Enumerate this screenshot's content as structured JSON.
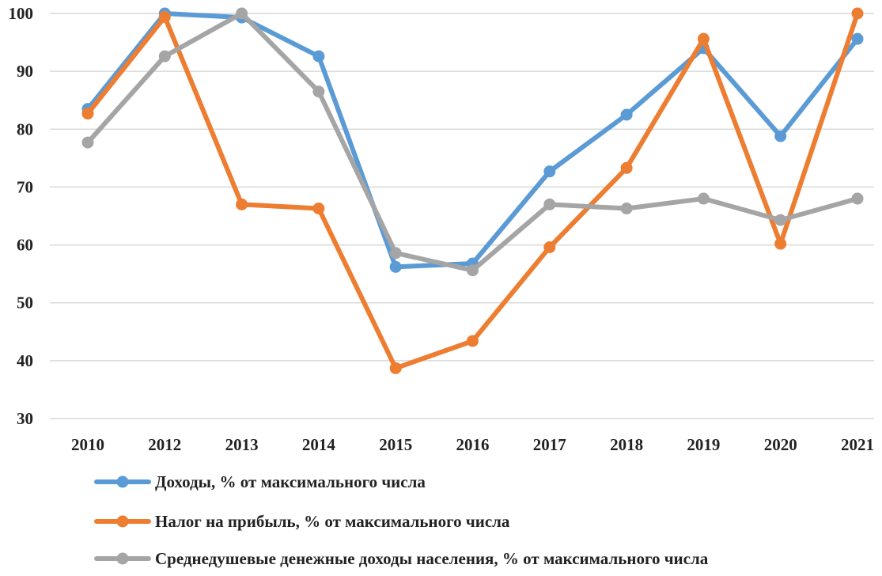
{
  "chart_data": {
    "type": "line",
    "categories": [
      "2010",
      "2012",
      "2013",
      "2014",
      "2015",
      "2016",
      "2017",
      "2018",
      "2019",
      "2020",
      "2021"
    ],
    "ylim": [
      30,
      100
    ],
    "yticks": [
      "30",
      "40",
      "50",
      "60",
      "70",
      "80",
      "90",
      "100"
    ],
    "grid": "horizontal",
    "legend": "bottom",
    "series": [
      {
        "name": "Доходы, % от максимального числа",
        "color": "#5b9bd5",
        "values": [
          83.5,
          100,
          99.3,
          92.6,
          56.2,
          56.8,
          72.7,
          82.5,
          94.0,
          78.8,
          95.6
        ]
      },
      {
        "name": "Налог на прибыль, % от максимального числа",
        "color": "#ed7d31",
        "values": [
          82.7,
          99.4,
          67.0,
          66.3,
          38.7,
          43.4,
          59.6,
          73.3,
          95.6,
          60.2,
          100
        ]
      },
      {
        "name": "Среднедушевые денежные доходы населения,  % от максимального числа",
        "color": "#a5a5a5",
        "values": [
          77.7,
          92.6,
          100,
          86.5,
          58.6,
          55.6,
          67.0,
          66.3,
          68.0,
          64.3,
          68.0
        ]
      }
    ]
  }
}
